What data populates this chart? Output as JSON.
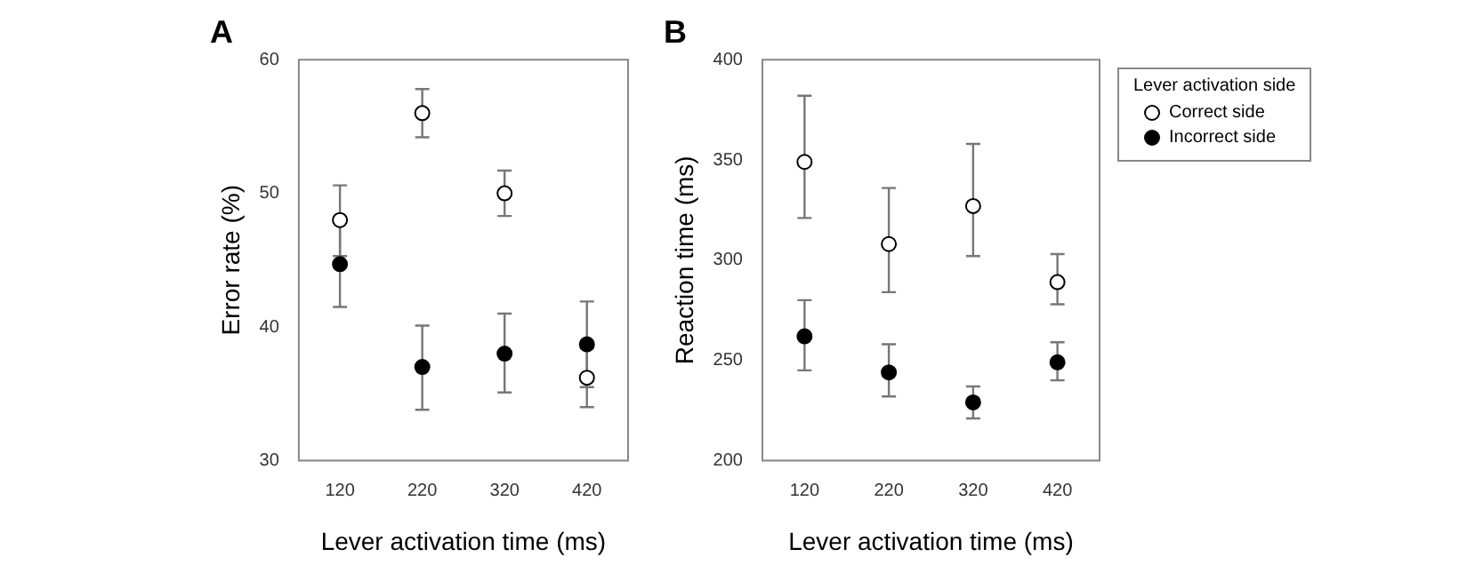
{
  "chart_data": [
    {
      "type": "scatter",
      "title": "A",
      "xlabel": "Lever activation time (ms)",
      "ylabel": "Error rate (%)",
      "categories": [
        "120",
        "220",
        "320",
        "420"
      ],
      "ylim": [
        30,
        60
      ],
      "yticks": [
        30,
        40,
        50,
        60
      ],
      "marker": "circle",
      "grid": false,
      "legend": false,
      "series": [
        {
          "color": "#ffffff",
          "values": [
            48,
            56,
            50,
            36.2
          ],
          "errors": [
            [
              45.3,
              50.6
            ],
            [
              54.2,
              57.8
            ],
            [
              48.3,
              51.7
            ],
            [
              34,
              38.4
            ]
          ]
        },
        {
          "color": "#000000",
          "values": [
            44.7,
            37,
            38,
            38.7
          ],
          "errors": [
            [
              41.5,
              47.9
            ],
            [
              33.8,
              40.1
            ],
            [
              35.1,
              41
            ],
            [
              35.5,
              41.9
            ]
          ]
        }
      ]
    },
    {
      "type": "scatter",
      "title": "B",
      "xlabel": "Lever activation time (ms)",
      "ylabel": "Reaction time (ms)",
      "legend_title": "Lever activation side",
      "categories": [
        "120",
        "220",
        "320",
        "420"
      ],
      "ylim": [
        200,
        400
      ],
      "yticks": [
        200,
        250,
        300,
        350,
        400
      ],
      "marker": "circle",
      "grid": false,
      "legend": "right",
      "series": [
        {
          "name": "Correct side",
          "color": "#ffffff",
          "values": [
            349,
            308,
            327,
            289
          ],
          "errors": [
            [
              321,
              382
            ],
            [
              284,
              336
            ],
            [
              302,
              358
            ],
            [
              278,
              303
            ]
          ]
        },
        {
          "name": "Incorrect side",
          "color": "#000000",
          "values": [
            262,
            244,
            229,
            249
          ],
          "errors": [
            [
              245,
              280
            ],
            [
              232,
              258
            ],
            [
              221,
              237
            ],
            [
              240,
              259
            ]
          ]
        }
      ]
    }
  ]
}
